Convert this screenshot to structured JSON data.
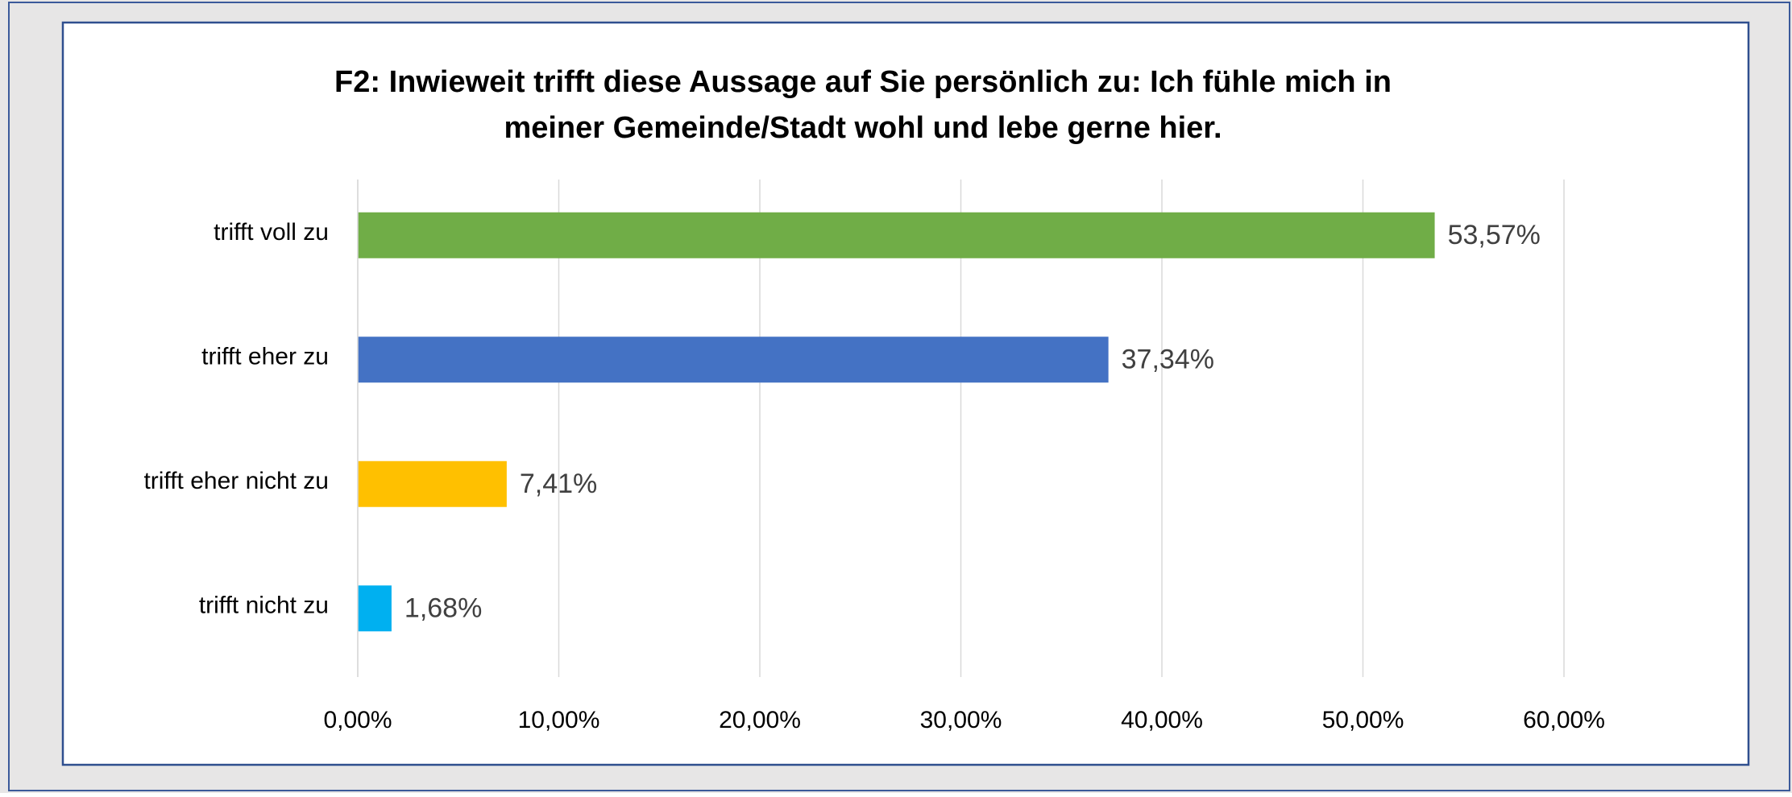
{
  "chart_data": {
    "type": "bar",
    "orientation": "horizontal",
    "title": [
      "F2: Inwieweit trifft diese Aussage auf Sie persönlich zu: Ich fühle mich in",
      "meiner Gemeinde/Stadt wohl und lebe gerne hier."
    ],
    "categories": [
      "trifft voll zu",
      "trifft eher zu",
      "trifft eher nicht zu",
      "trifft nicht zu"
    ],
    "values": [
      53.57,
      37.34,
      7.41,
      1.68
    ],
    "value_labels": [
      "53,57%",
      "37,34%",
      "7,41%",
      "1,68%"
    ],
    "colors": [
      "#70ad47",
      "#4472c4",
      "#ffc000",
      "#00b0f0"
    ],
    "xlim": [
      0,
      60
    ],
    "xticks": [
      {
        "value": 0,
        "label": "0,00%"
      },
      {
        "value": 10,
        "label": "10,00%"
      },
      {
        "value": 20,
        "label": "20,00%"
      },
      {
        "value": 30,
        "label": "30,00%"
      },
      {
        "value": 40,
        "label": "40,00%"
      },
      {
        "value": 50,
        "label": "50,00%"
      },
      {
        "value": 60,
        "label": "60,00%"
      }
    ],
    "grid": true
  }
}
